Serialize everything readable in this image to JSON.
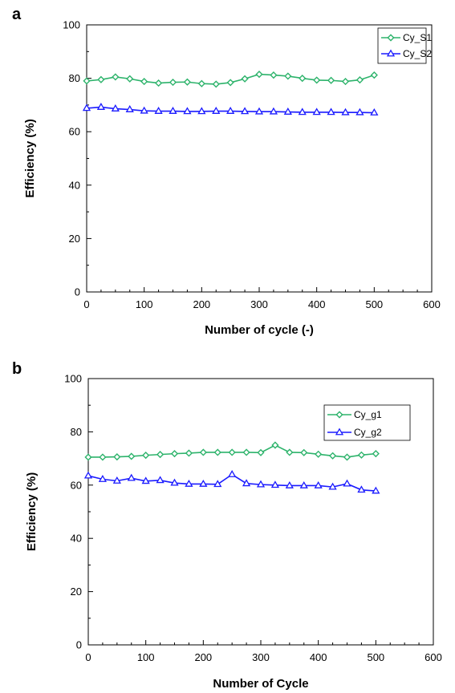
{
  "chart_data": [
    {
      "panel_label": "a",
      "type": "line",
      "xlabel": "Number of cycle (-)",
      "ylabel": "Efficiency  (%)",
      "xlim": [
        0,
        600
      ],
      "ylim": [
        0,
        100
      ],
      "xticks": [
        0,
        100,
        200,
        300,
        400,
        500,
        600
      ],
      "yticks": [
        0,
        20,
        40,
        60,
        80,
        100
      ],
      "grid": false,
      "legend_placement": "top-right",
      "x": [
        0,
        25,
        50,
        75,
        100,
        125,
        150,
        175,
        200,
        225,
        250,
        275,
        300,
        325,
        350,
        375,
        400,
        425,
        450,
        475,
        500
      ],
      "series": [
        {
          "name": "Cy_S1",
          "color": "#2db36b",
          "marker": "diamond",
          "values": [
            79,
            79.5,
            80.5,
            79.8,
            78.8,
            78.2,
            78.5,
            78.6,
            78,
            77.8,
            78.4,
            79.8,
            81.5,
            81.2,
            80.8,
            80,
            79.3,
            79.2,
            78.8,
            79.4,
            81.2
          ]
        },
        {
          "name": "Cy_S2",
          "color": "#1a1aff",
          "marker": "triangle",
          "values": [
            68.8,
            69.2,
            68.6,
            68.3,
            67.8,
            67.7,
            67.7,
            67.6,
            67.6,
            67.7,
            67.7,
            67.6,
            67.5,
            67.5,
            67.4,
            67.3,
            67.3,
            67.3,
            67.2,
            67.2,
            67.1
          ]
        }
      ]
    },
    {
      "panel_label": "b",
      "type": "line",
      "xlabel": "Number of Cycle",
      "ylabel": "Efficiency (%)",
      "xlim": [
        0,
        600
      ],
      "ylim": [
        0,
        100
      ],
      "xticks": [
        0,
        100,
        200,
        300,
        400,
        500,
        600
      ],
      "yticks": [
        0,
        20,
        40,
        60,
        80,
        100
      ],
      "grid": false,
      "legend_placement": "top-right",
      "x": [
        0,
        25,
        50,
        75,
        100,
        125,
        150,
        175,
        200,
        225,
        250,
        275,
        300,
        325,
        350,
        375,
        400,
        425,
        450,
        475,
        500
      ],
      "series": [
        {
          "name": "Cy_g1",
          "color": "#2db36b",
          "marker": "diamond",
          "values": [
            70.5,
            70.5,
            70.6,
            70.8,
            71.2,
            71.5,
            71.8,
            72,
            72.3,
            72.3,
            72.3,
            72.3,
            72.2,
            75,
            72.3,
            72.2,
            71.6,
            71,
            70.5,
            71.3,
            71.8
          ]
        },
        {
          "name": "Cy_g2",
          "color": "#1a1aff",
          "marker": "triangle",
          "values": [
            63.5,
            62.2,
            61.6,
            62.6,
            61.5,
            61.8,
            60.8,
            60.4,
            60.4,
            60.3,
            64,
            60.6,
            60.2,
            60,
            59.8,
            59.8,
            59.8,
            59.3,
            60.5,
            58.2,
            57.8
          ]
        }
      ]
    }
  ]
}
